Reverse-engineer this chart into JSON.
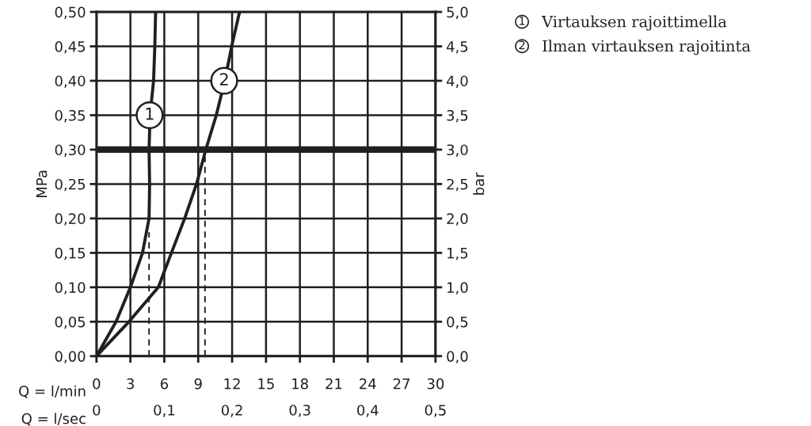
{
  "chart_data": {
    "type": "line",
    "xlabel": "Q = l/min",
    "ylabel": "MPa",
    "y2label": "bar",
    "x2label": "Q = l/sec",
    "series": [
      {
        "name": "Virtauksen rajoittimella",
        "color": "#231f20",
        "x": [
          0,
          1.73,
          3.0,
          4.07,
          4.65,
          4.7,
          4.65,
          4.74,
          5.05,
          5.16,
          5.23
        ],
        "values": [
          0,
          0.05,
          0.1,
          0.15,
          0.2,
          0.25,
          0.3,
          0.35,
          0.4,
          0.45,
          0.5
        ]
      },
      {
        "name": "Ilman virtauksen rajoitinta",
        "color": "#231f20",
        "x": [
          0,
          2.87,
          5.47,
          5.93,
          6.63,
          7.8,
          8.85,
          9.67,
          10.6,
          11.35,
          11.96,
          12.66
        ],
        "values": [
          0,
          0.05,
          0.1,
          0.12,
          0.15,
          0.2,
          0.25,
          0.3,
          0.35,
          0.4,
          0.45,
          0.5
        ]
      },
      {
        "color": "#231f20",
        "line_style": "dashed",
        "x": [
          4.65,
          4.65
        ],
        "values": [
          0,
          0.18
        ]
      },
      {
        "color": "#231f20",
        "line_style": "dashed",
        "x": [
          9.6,
          9.6
        ],
        "values": [
          0,
          0.29
        ]
      }
    ],
    "annotations": [
      {
        "text": "1",
        "x": 4.7,
        "y": 0.35
      },
      {
        "text": "2",
        "x": 11.3,
        "y": 0.4
      }
    ],
    "ref_lines": [
      {
        "axis": "y",
        "value": 0.3,
        "color": "#231f20"
      }
    ],
    "xlim": [
      0,
      30
    ],
    "xticks": [
      0,
      3,
      6,
      9,
      12,
      15,
      18,
      21,
      24,
      27,
      30
    ],
    "x2lim": [
      0,
      0.5
    ],
    "x2ticks": [
      0,
      {
        "value": 0.1,
        "label": "0,1"
      },
      {
        "value": 0.2,
        "label": "0,2"
      },
      {
        "value": 0.3,
        "label": "0,3"
      },
      {
        "value": 0.4,
        "label": "0,4"
      },
      {
        "value": 0.5,
        "label": "0,5"
      }
    ],
    "ylim": [
      0,
      0.5
    ],
    "yticks": [
      {
        "value": 0,
        "label": "0,00"
      },
      {
        "value": 0.05,
        "label": "0,05"
      },
      {
        "value": 0.1,
        "label": "0,10"
      },
      {
        "value": 0.15,
        "label": "0,15"
      },
      {
        "value": 0.2,
        "label": "0,20"
      },
      {
        "value": 0.25,
        "label": "0,25"
      },
      {
        "value": 0.3,
        "label": "0,30"
      },
      {
        "value": 0.35,
        "label": "0,35"
      },
      {
        "value": 0.4,
        "label": "0,40"
      },
      {
        "value": 0.45,
        "label": "0,45"
      },
      {
        "value": 0.5,
        "label": "0,50"
      }
    ],
    "y2lim": [
      0,
      5
    ],
    "y2ticks": [
      {
        "value": 0,
        "label": "0,0"
      },
      {
        "value": 0.5,
        "label": "0,5"
      },
      {
        "value": 1,
        "label": "1,0"
      },
      {
        "value": 1.5,
        "label": "1,5"
      },
      {
        "value": 2,
        "label": "2,0"
      },
      {
        "value": 2.5,
        "label": "2,5"
      },
      {
        "value": 3,
        "label": "3,0"
      },
      {
        "value": 3.5,
        "label": "3,5"
      },
      {
        "value": 4,
        "label": "4,0"
      },
      {
        "value": 4.5,
        "label": "4,5"
      },
      {
        "value": 5,
        "label": "5,0"
      }
    ],
    "grid": true,
    "legend": "top right",
    "marker": "none",
    "line_style": "solid"
  }
}
